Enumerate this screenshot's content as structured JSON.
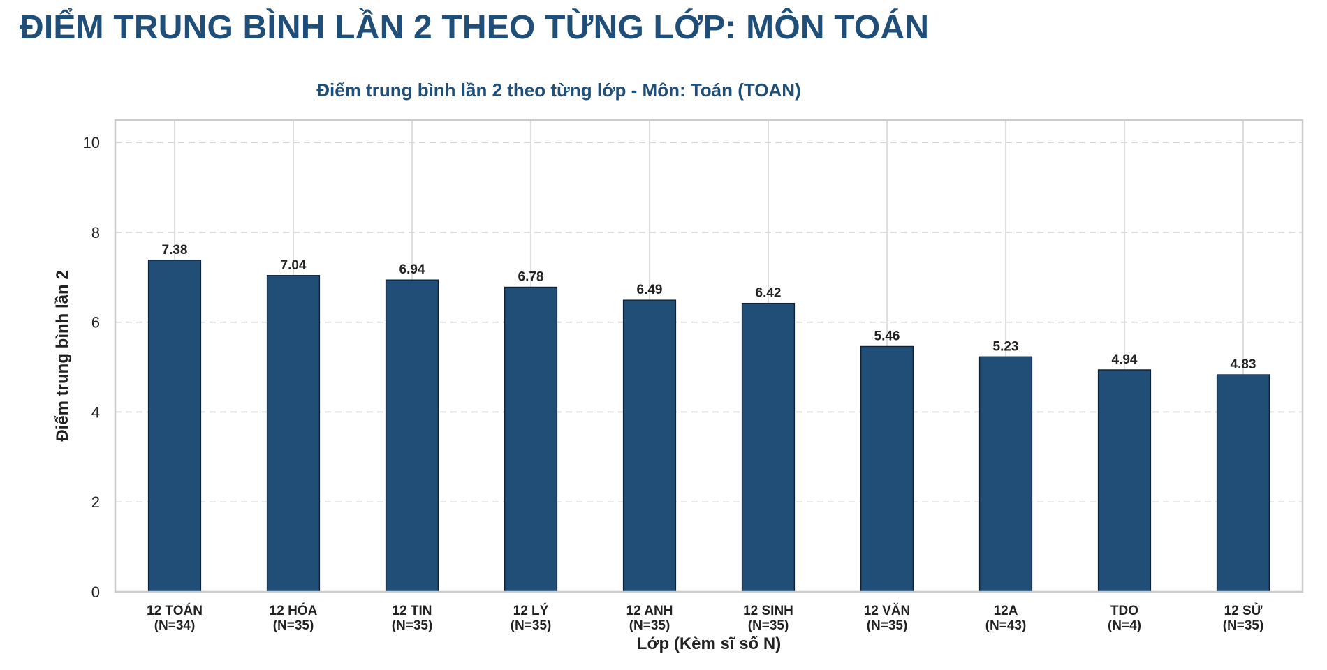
{
  "page": {
    "title": "ĐIỂM TRUNG BÌNH LẦN 2 THEO TỪNG LỚP: MÔN TOÁN"
  },
  "colors": {
    "title": "#1f4e79",
    "bar": "#214e76",
    "bar_edge": "#0f2233",
    "grid": "#d5d5d5",
    "axis_frame": "#cccccc",
    "text": "#222222"
  },
  "chart_data": {
    "type": "bar",
    "title": "Điểm trung bình lần 2 theo từng lớp - Môn: Toán (TOAN)",
    "xlabel": "Lớp (Kèm sĩ số N)",
    "ylabel": "Điểm trung bình lần 2",
    "ylim": [
      0,
      10.5
    ],
    "yticks": [
      0,
      2,
      4,
      6,
      8,
      10
    ],
    "grid": {
      "y": "dashed",
      "x": "solid"
    },
    "categories": [
      "12 TOÁN",
      "12 HÓA",
      "12 TIN",
      "12 LÝ",
      "12 ANH",
      "12 SINH",
      "12 VĂN",
      "12A",
      "TDO",
      "12 SỬ"
    ],
    "category_n": [
      "(N=34)",
      "(N=35)",
      "(N=35)",
      "(N=35)",
      "(N=35)",
      "(N=35)",
      "(N=35)",
      "(N=43)",
      "(N=4)",
      "(N=35)"
    ],
    "values": [
      7.38,
      7.04,
      6.94,
      6.78,
      6.49,
      6.42,
      5.46,
      5.23,
      4.94,
      4.83
    ],
    "value_labels": [
      "7.38",
      "7.04",
      "6.94",
      "6.78",
      "6.49",
      "6.42",
      "5.46",
      "5.23",
      "4.94",
      "4.83"
    ]
  }
}
